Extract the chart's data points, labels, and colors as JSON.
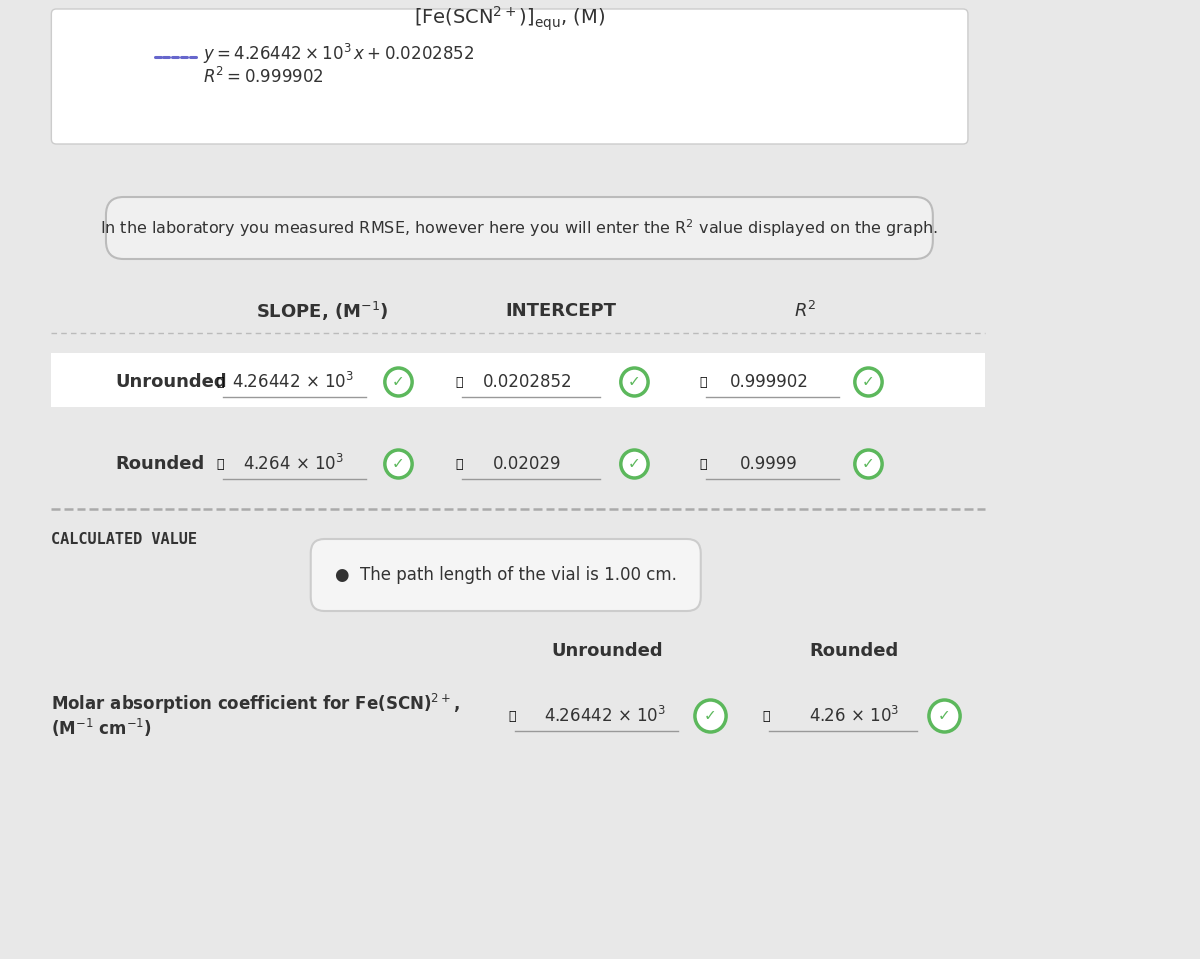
{
  "bg_color": "#e8e8e8",
  "top_panel_bg": "#ffffff",
  "top_panel_border": "#cccccc",
  "title_text": "[Fe(SCN$^{2+}$)]$_\\mathrm{equ}$, (M)",
  "equation_line1": "$y = 4.26442 \\times 10^3\\, x + 0.0202852$",
  "equation_line2": "$R^2 = 0.999902$",
  "dotted_line_color": "#6666cc",
  "info_box_text": "In the laboratory you measured RMSE, however here you will enter the R$^2$ value displayed on the graph.",
  "info_box_bg": "#f0f0f0",
  "info_box_border": "#bbbbbb",
  "col_headers": [
    "SLOPE, (M$^{-1}$)",
    "INTERCEPT",
    "$R^2$"
  ],
  "row_labels": [
    "Unrounded",
    "Rounded"
  ],
  "unrounded_values": [
    "4.26442 × 10$^3$",
    "0.0202852",
    "0.999902"
  ],
  "rounded_values": [
    "4.264 × 10$^3$",
    "0.02029",
    "0.9999"
  ],
  "dashed_line_color": "#aaaaaa",
  "calc_value_label": "CALCULATED VALUE",
  "path_box_text": "The path length of the vial is 1.00 cm.",
  "path_box_bg": "#f5f5f5",
  "path_box_border": "#cccccc",
  "molar_label_line1": "Molar absorption coefficient for Fe(SCN)$^{2+}$,",
  "molar_label_line2": "(M$^{-1}$ cm$^{-1}$)",
  "molar_unrounded": "4.26442 × 10$^3$",
  "molar_rounded": "4.26 × 10$^3$",
  "green_color": "#5cb85c",
  "text_dark": "#333333",
  "row_bg_unrounded": "#ffffff",
  "row_bg_rounded": "#e8e8e8"
}
